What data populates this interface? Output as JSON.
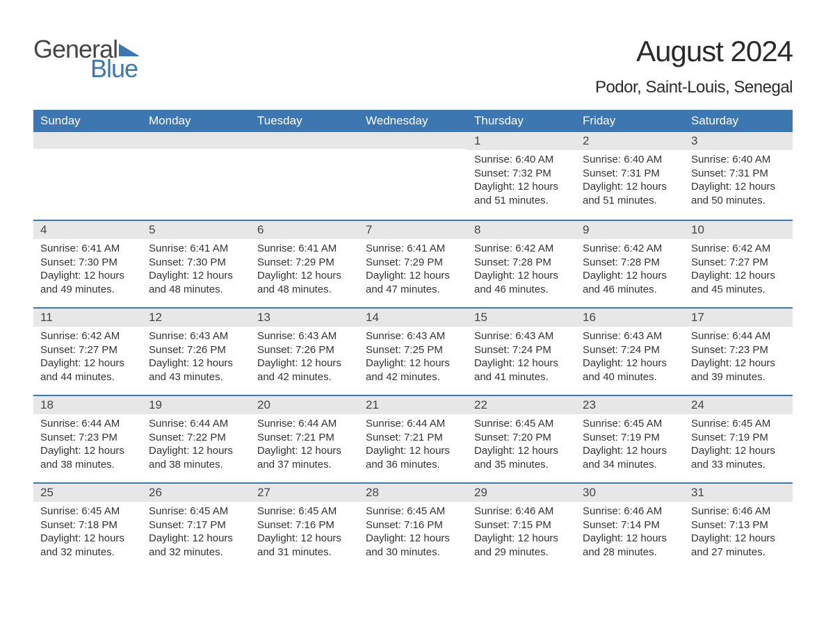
{
  "logo": {
    "word1": "General",
    "word2": "Blue",
    "text_color1": "#454545",
    "text_color2": "#3c77b2"
  },
  "title": "August 2024",
  "location": "Podor, Saint-Louis, Senegal",
  "header_bg": "#3c77b2",
  "header_text": "#ffffff",
  "daynum_bg": "#e7e7e7",
  "row_border": "#3c77b2",
  "days_of_week": [
    "Sunday",
    "Monday",
    "Tuesday",
    "Wednesday",
    "Thursday",
    "Friday",
    "Saturday"
  ],
  "weeks": [
    [
      {
        "n": "",
        "sr": "",
        "ss": "",
        "dl": ""
      },
      {
        "n": "",
        "sr": "",
        "ss": "",
        "dl": ""
      },
      {
        "n": "",
        "sr": "",
        "ss": "",
        "dl": ""
      },
      {
        "n": "",
        "sr": "",
        "ss": "",
        "dl": ""
      },
      {
        "n": "1",
        "sr": "Sunrise: 6:40 AM",
        "ss": "Sunset: 7:32 PM",
        "dl": "Daylight: 12 hours and 51 minutes."
      },
      {
        "n": "2",
        "sr": "Sunrise: 6:40 AM",
        "ss": "Sunset: 7:31 PM",
        "dl": "Daylight: 12 hours and 51 minutes."
      },
      {
        "n": "3",
        "sr": "Sunrise: 6:40 AM",
        "ss": "Sunset: 7:31 PM",
        "dl": "Daylight: 12 hours and 50 minutes."
      }
    ],
    [
      {
        "n": "4",
        "sr": "Sunrise: 6:41 AM",
        "ss": "Sunset: 7:30 PM",
        "dl": "Daylight: 12 hours and 49 minutes."
      },
      {
        "n": "5",
        "sr": "Sunrise: 6:41 AM",
        "ss": "Sunset: 7:30 PM",
        "dl": "Daylight: 12 hours and 48 minutes."
      },
      {
        "n": "6",
        "sr": "Sunrise: 6:41 AM",
        "ss": "Sunset: 7:29 PM",
        "dl": "Daylight: 12 hours and 48 minutes."
      },
      {
        "n": "7",
        "sr": "Sunrise: 6:41 AM",
        "ss": "Sunset: 7:29 PM",
        "dl": "Daylight: 12 hours and 47 minutes."
      },
      {
        "n": "8",
        "sr": "Sunrise: 6:42 AM",
        "ss": "Sunset: 7:28 PM",
        "dl": "Daylight: 12 hours and 46 minutes."
      },
      {
        "n": "9",
        "sr": "Sunrise: 6:42 AM",
        "ss": "Sunset: 7:28 PM",
        "dl": "Daylight: 12 hours and 46 minutes."
      },
      {
        "n": "10",
        "sr": "Sunrise: 6:42 AM",
        "ss": "Sunset: 7:27 PM",
        "dl": "Daylight: 12 hours and 45 minutes."
      }
    ],
    [
      {
        "n": "11",
        "sr": "Sunrise: 6:42 AM",
        "ss": "Sunset: 7:27 PM",
        "dl": "Daylight: 12 hours and 44 minutes."
      },
      {
        "n": "12",
        "sr": "Sunrise: 6:43 AM",
        "ss": "Sunset: 7:26 PM",
        "dl": "Daylight: 12 hours and 43 minutes."
      },
      {
        "n": "13",
        "sr": "Sunrise: 6:43 AM",
        "ss": "Sunset: 7:26 PM",
        "dl": "Daylight: 12 hours and 42 minutes."
      },
      {
        "n": "14",
        "sr": "Sunrise: 6:43 AM",
        "ss": "Sunset: 7:25 PM",
        "dl": "Daylight: 12 hours and 42 minutes."
      },
      {
        "n": "15",
        "sr": "Sunrise: 6:43 AM",
        "ss": "Sunset: 7:24 PM",
        "dl": "Daylight: 12 hours and 41 minutes."
      },
      {
        "n": "16",
        "sr": "Sunrise: 6:43 AM",
        "ss": "Sunset: 7:24 PM",
        "dl": "Daylight: 12 hours and 40 minutes."
      },
      {
        "n": "17",
        "sr": "Sunrise: 6:44 AM",
        "ss": "Sunset: 7:23 PM",
        "dl": "Daylight: 12 hours and 39 minutes."
      }
    ],
    [
      {
        "n": "18",
        "sr": "Sunrise: 6:44 AM",
        "ss": "Sunset: 7:23 PM",
        "dl": "Daylight: 12 hours and 38 minutes."
      },
      {
        "n": "19",
        "sr": "Sunrise: 6:44 AM",
        "ss": "Sunset: 7:22 PM",
        "dl": "Daylight: 12 hours and 38 minutes."
      },
      {
        "n": "20",
        "sr": "Sunrise: 6:44 AM",
        "ss": "Sunset: 7:21 PM",
        "dl": "Daylight: 12 hours and 37 minutes."
      },
      {
        "n": "21",
        "sr": "Sunrise: 6:44 AM",
        "ss": "Sunset: 7:21 PM",
        "dl": "Daylight: 12 hours and 36 minutes."
      },
      {
        "n": "22",
        "sr": "Sunrise: 6:45 AM",
        "ss": "Sunset: 7:20 PM",
        "dl": "Daylight: 12 hours and 35 minutes."
      },
      {
        "n": "23",
        "sr": "Sunrise: 6:45 AM",
        "ss": "Sunset: 7:19 PM",
        "dl": "Daylight: 12 hours and 34 minutes."
      },
      {
        "n": "24",
        "sr": "Sunrise: 6:45 AM",
        "ss": "Sunset: 7:19 PM",
        "dl": "Daylight: 12 hours and 33 minutes."
      }
    ],
    [
      {
        "n": "25",
        "sr": "Sunrise: 6:45 AM",
        "ss": "Sunset: 7:18 PM",
        "dl": "Daylight: 12 hours and 32 minutes."
      },
      {
        "n": "26",
        "sr": "Sunrise: 6:45 AM",
        "ss": "Sunset: 7:17 PM",
        "dl": "Daylight: 12 hours and 32 minutes."
      },
      {
        "n": "27",
        "sr": "Sunrise: 6:45 AM",
        "ss": "Sunset: 7:16 PM",
        "dl": "Daylight: 12 hours and 31 minutes."
      },
      {
        "n": "28",
        "sr": "Sunrise: 6:45 AM",
        "ss": "Sunset: 7:16 PM",
        "dl": "Daylight: 12 hours and 30 minutes."
      },
      {
        "n": "29",
        "sr": "Sunrise: 6:46 AM",
        "ss": "Sunset: 7:15 PM",
        "dl": "Daylight: 12 hours and 29 minutes."
      },
      {
        "n": "30",
        "sr": "Sunrise: 6:46 AM",
        "ss": "Sunset: 7:14 PM",
        "dl": "Daylight: 12 hours and 28 minutes."
      },
      {
        "n": "31",
        "sr": "Sunrise: 6:46 AM",
        "ss": "Sunset: 7:13 PM",
        "dl": "Daylight: 12 hours and 27 minutes."
      }
    ]
  ]
}
